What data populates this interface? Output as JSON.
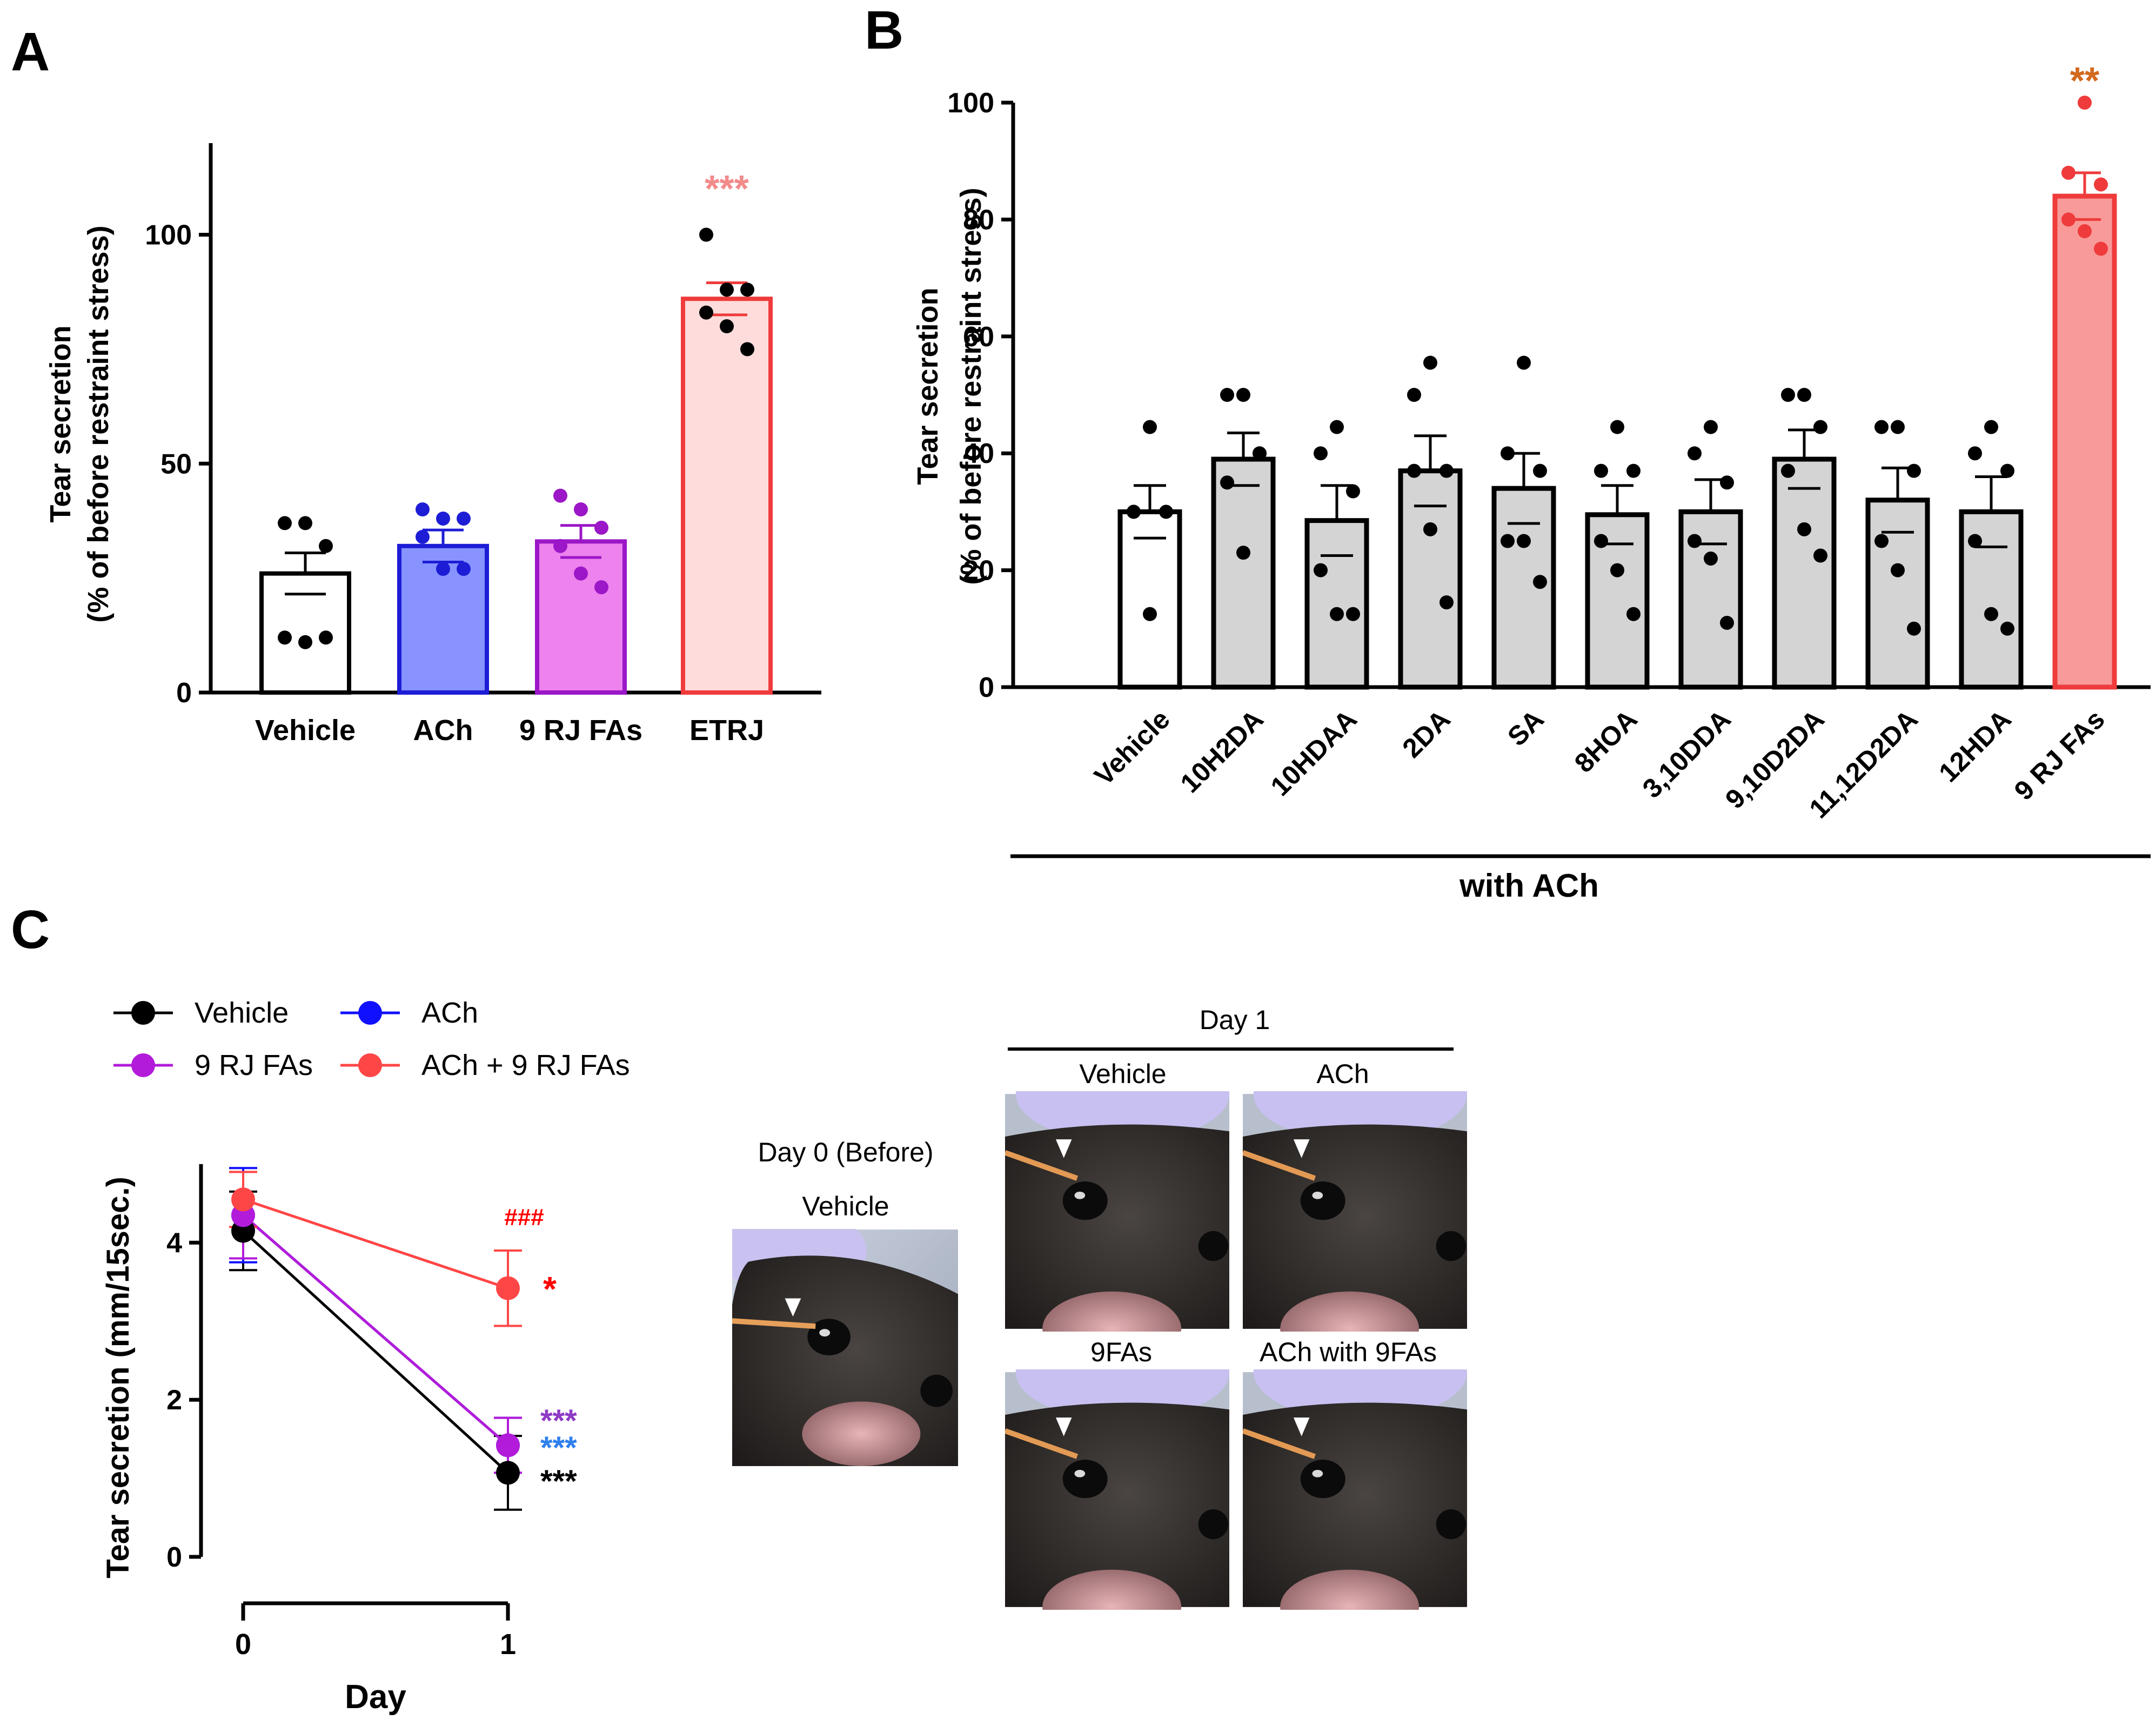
{
  "panels": {
    "A": "A",
    "B": "B",
    "C": "C"
  },
  "colors": {
    "black": "#000000",
    "vehicle_fill": "#ffffff",
    "ach_fill": "#8893ff",
    "ach_stroke": "#1d1dd6",
    "fas_fill": "#ee82ee",
    "fas_stroke": "#9b17c7",
    "etrj_fill": "#ffdcdc",
    "etrj_stroke": "#ef3b3b",
    "grey_fill": "#d4d4d4",
    "rjfas_fill": "#f89a9a",
    "sig_pink": "#f28b8b",
    "sig_orange": "#d2691e",
    "line_black": "#000000",
    "line_blue": "#1010ff",
    "line_purple": "#b21bd9",
    "line_red": "#ff4646",
    "sig_purple": "#8f3ac6",
    "sig_blue": "#2f80ed",
    "sig_red": "#ff0000"
  },
  "chart_data": [
    {
      "id": "A",
      "type": "bar",
      "ylabel_line1": "Tear secretion",
      "ylabel_line2": "(% of before restraint stress)",
      "ylim": [
        0,
        120
      ],
      "yticks": [
        0,
        50,
        100
      ],
      "categories": [
        "Vehicle",
        "ACh",
        "9 RJ FAs",
        "ETRJ"
      ],
      "values": [
        26,
        32,
        33,
        86
      ],
      "sem": [
        4.5,
        3.5,
        3.5,
        3.5
      ],
      "points": [
        [
          37,
          37,
          32,
          12,
          11,
          12
        ],
        [
          40,
          38,
          38,
          34,
          27,
          27
        ],
        [
          43,
          40,
          36,
          32,
          26,
          23
        ],
        [
          100,
          88,
          88,
          83,
          80,
          75
        ]
      ],
      "significance": [
        "",
        "",
        "",
        "***"
      ]
    },
    {
      "id": "B",
      "type": "bar",
      "ylabel_line1": "Tear secretion",
      "ylabel_line2": "(% of before restraint stress)",
      "ylim": [
        0,
        100
      ],
      "yticks": [
        0,
        20,
        40,
        60,
        80,
        100
      ],
      "categories": [
        "Vehicle",
        "10H2DA",
        "10HDAA",
        "2DA",
        "SA",
        "8HOA",
        "3,10DDA",
        "9,10D2DA",
        "11,12D2DA",
        "12HDA",
        "9 RJ FAs"
      ],
      "values": [
        30,
        39,
        28.5,
        37,
        34,
        29.5,
        30,
        39,
        32,
        30,
        84
      ],
      "sem": [
        4.5,
        4.5,
        6,
        6,
        6,
        5,
        5.5,
        5,
        5.5,
        6,
        4
      ],
      "points": [
        [
          44.5,
          30,
          30,
          30,
          12.5
        ],
        [
          50,
          50,
          40,
          35,
          23,
          40
        ],
        [
          44.5,
          40,
          33.5,
          20,
          12.5,
          12.5
        ],
        [
          55.5,
          50,
          37,
          37,
          27,
          14.5
        ],
        [
          55.5,
          40,
          37,
          25,
          25,
          18
        ],
        [
          44.5,
          37,
          37,
          25,
          20,
          12.5
        ],
        [
          44.5,
          40,
          35,
          25,
          22,
          11
        ],
        [
          50,
          50,
          44.5,
          37,
          27,
          22.5
        ],
        [
          44.5,
          44.5,
          37,
          25,
          20,
          10
        ],
        [
          44.5,
          40,
          37,
          25,
          12.5,
          10
        ],
        [
          100,
          88,
          86,
          80,
          78,
          75
        ]
      ],
      "significance": [
        "",
        "",
        "",
        "",
        "",
        "",
        "",
        "",
        "",
        "",
        "**"
      ],
      "group_label": "with ACh"
    },
    {
      "id": "C",
      "type": "line",
      "xlabel": "Day",
      "ylabel": "Tear secretion (mm/15sec.)",
      "x": [
        0,
        1
      ],
      "xticks": [
        "0",
        "1"
      ],
      "ylim": [
        0,
        5
      ],
      "yticks": [
        0,
        2,
        4
      ],
      "series": [
        {
          "name": "Vehicle",
          "values": [
            4.15,
            1.07
          ],
          "err": [
            0.5,
            0.47
          ]
        },
        {
          "name": "ACh",
          "values": [
            4.35,
            1.42
          ],
          "err": [
            0.6,
            0.35
          ]
        },
        {
          "name": "9 RJ FAs",
          "values": [
            4.35,
            1.42
          ],
          "err": [
            0.55,
            0.35
          ]
        },
        {
          "name": "ACh + 9 RJ FAs",
          "values": [
            4.55,
            3.42
          ],
          "err": [
            0.35,
            0.48
          ]
        }
      ],
      "annotations": {
        "hash": "###",
        "star_red": "*",
        "star_purple": "***",
        "star_blue": "***",
        "star_black": "***"
      }
    }
  ],
  "photos": {
    "day0_title": "Day 0 (Before)",
    "day0_label": "Vehicle",
    "day1_title": "Day 1",
    "labels": [
      "Vehicle",
      "ACh",
      "9FAs",
      "ACh with 9FAs"
    ]
  }
}
